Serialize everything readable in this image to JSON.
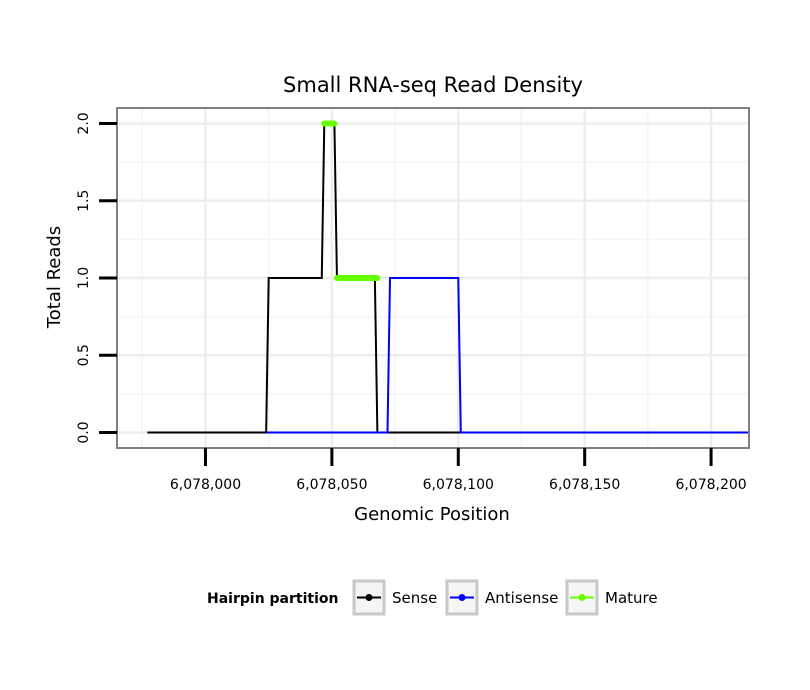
{
  "chart_data": {
    "type": "line",
    "title": "Small RNA-seq Read Density",
    "xlabel": "Genomic Position",
    "ylabel": "Total Reads",
    "xlim": [
      6077965,
      6078215
    ],
    "ylim": [
      -0.1,
      2.1
    ],
    "x_ticks": [
      6078000,
      6078050,
      6078100,
      6078150,
      6078200
    ],
    "x_tick_labels": [
      "6,078,000",
      "6,078,050",
      "6,078,100",
      "6,078,150",
      "6,078,200"
    ],
    "y_ticks": [
      0,
      0.5,
      1,
      1.5,
      2
    ],
    "y_tick_labels": [
      "0.0",
      "0.5",
      "1.0",
      "1.5",
      "2.0"
    ],
    "grid": true,
    "legend": {
      "title": "Hairpin partition",
      "position": "bottom",
      "entries": [
        "Sense",
        "Antisense",
        "Mature"
      ]
    },
    "series": [
      {
        "name": "Sense",
        "color": "#000000",
        "x": [
          6077977,
          6078024,
          6078025,
          6078046,
          6078047,
          6078051,
          6078052,
          6078067,
          6078068,
          6078215
        ],
        "y": [
          0,
          0,
          1,
          1,
          2,
          2,
          1,
          1,
          0,
          0
        ]
      },
      {
        "name": "Antisense",
        "color": "#0000ff",
        "x": [
          6078024,
          6078072,
          6078073,
          6078100,
          6078101,
          6078215
        ],
        "y": [
          0,
          0,
          1,
          1,
          0,
          0
        ]
      },
      {
        "name": "Mature",
        "color": "#66ff00",
        "segments": [
          {
            "x": [
              6078047,
              6078051
            ],
            "y": [
              2,
              2
            ]
          },
          {
            "x": [
              6078052,
              6078068
            ],
            "y": [
              1,
              1
            ]
          }
        ]
      }
    ]
  }
}
